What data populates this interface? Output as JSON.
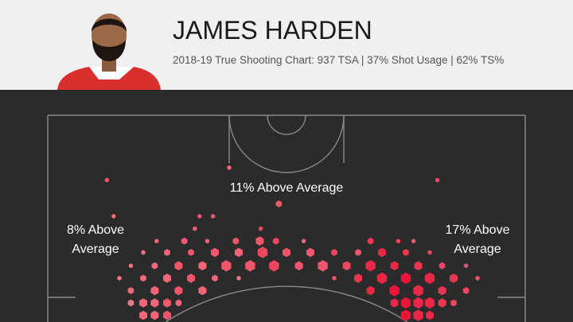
{
  "header": {
    "name": "JAMES HARDEN",
    "subtitle": "2018-19 True Shooting Chart: 937 TSA | 37% Shot Usage | 62% TS%"
  },
  "chart_data": {
    "type": "hexbin",
    "annotations": [
      {
        "lines": [
          "11% Above Average"
        ],
        "x": 0,
        "y": 7.6
      },
      {
        "lines": [
          "8% Above",
          "Average"
        ],
        "x": -20,
        "y": 13
      },
      {
        "lines": [
          "17% Above",
          "Average"
        ],
        "x": 20,
        "y": 13
      }
    ],
    "xlim": [
      -25,
      25
    ],
    "ylim": [
      0,
      21.7
    ],
    "color_low": "#f6b4b8",
    "color_high": "#e8173a",
    "x": [
      -6,
      -18.8,
      15.8,
      -0.8,
      -18.1,
      -9.1,
      -7.7,
      -9.6,
      -2.7,
      -13.6,
      -10.7,
      -8.3,
      -5.3,
      -2.8,
      -1.1,
      1.8,
      8.8,
      11.7,
      13.3,
      -15,
      -12.5,
      -10,
      -7.5,
      -5,
      -2.5,
      0,
      2.5,
      5,
      7.5,
      10,
      12.5,
      15,
      -16.3,
      -13.8,
      -11.3,
      -8.8,
      -6.3,
      -3.8,
      -1.3,
      1.3,
      3.8,
      6.3,
      8.8,
      11.3,
      13.8,
      16.3,
      18.8,
      -17.5,
      -15,
      -12.5,
      -10,
      -7.5,
      -5,
      5,
      7.5,
      10,
      12.5,
      15,
      17.5,
      20,
      -16.3,
      -13.8,
      -11.3,
      -8.8,
      8.8,
      11.3,
      13.8,
      16.3,
      18.8,
      -16.3,
      -15,
      -13.8,
      -12.5,
      -11.3,
      11.3,
      12.5,
      13.8,
      15,
      16.3,
      17.5,
      -15,
      -13.8,
      -12.5,
      12.5,
      13.8,
      15
    ],
    "y": [
      5.5,
      6.8,
      6.8,
      9.3,
      10.6,
      10.6,
      10.6,
      11.9,
      11.9,
      13.2,
      13.2,
      13.2,
      13.2,
      13.2,
      13.2,
      13.2,
      13.2,
      13.2,
      13.2,
      14.4,
      14.4,
      14.4,
      14.4,
      14.4,
      14.4,
      14.4,
      14.4,
      14.4,
      14.4,
      14.4,
      14.4,
      14.4,
      15.8,
      15.8,
      15.8,
      15.8,
      15.8,
      15.8,
      15.8,
      15.8,
      15.8,
      15.8,
      15.8,
      15.8,
      15.8,
      15.8,
      15.8,
      17.1,
      17.1,
      17.1,
      17.1,
      17.1,
      17.1,
      17.1,
      17.1,
      17.1,
      17.1,
      17.1,
      17.1,
      17.1,
      18.4,
      18.4,
      18.4,
      18.4,
      18.4,
      18.4,
      18.4,
      18.4,
      18.4,
      19.7,
      19.7,
      19.7,
      19.7,
      19.7,
      19.7,
      19.7,
      19.7,
      19.7,
      19.7,
      19.7,
      21,
      21,
      21,
      21,
      21,
      21
    ],
    "sizes": [
      1,
      1,
      1,
      2,
      1,
      1,
      1,
      1,
      1,
      1,
      2,
      1,
      2,
      3,
      2,
      1,
      2,
      1,
      1,
      1,
      2,
      2,
      3,
      3,
      4,
      3,
      3,
      2,
      2,
      3,
      2,
      1,
      1,
      2,
      3,
      3,
      4,
      4,
      4,
      3,
      4,
      3,
      4,
      3,
      3,
      2,
      1,
      1,
      2,
      3,
      3,
      2,
      1,
      1,
      3,
      4,
      4,
      4,
      3,
      1,
      2,
      3,
      3,
      3,
      3,
      4,
      4,
      3,
      2,
      2,
      3,
      3,
      3,
      2,
      3,
      4,
      4,
      4,
      3,
      2,
      3,
      3,
      3,
      4,
      4,
      3
    ],
    "values": [
      0.5,
      0.6,
      0.7,
      0.6,
      0.5,
      0.6,
      0.6,
      0.5,
      0.7,
      0.5,
      0.6,
      0.5,
      0.6,
      0.6,
      0.7,
      0.5,
      0.8,
      0.7,
      0.6,
      0.4,
      0.5,
      0.6,
      0.6,
      0.5,
      0.7,
      0.6,
      0.6,
      0.7,
      0.6,
      0.9,
      0.8,
      0.7,
      0.4,
      0.5,
      0.6,
      0.5,
      0.6,
      0.6,
      0.7,
      0.6,
      0.6,
      0.7,
      0.9,
      0.9,
      0.8,
      0.7,
      0.6,
      0.4,
      0.5,
      0.5,
      0.6,
      0.5,
      0.4,
      0.6,
      0.8,
      0.9,
      1,
      0.9,
      0.8,
      0.6,
      0.5,
      0.5,
      0.6,
      0.5,
      0.9,
      1,
      0.9,
      0.8,
      0.7,
      0.4,
      0.5,
      0.5,
      0.6,
      0.5,
      0.9,
      1,
      0.9,
      0.9,
      0.8,
      0.7,
      0.5,
      0.5,
      0.6,
      1,
      0.9,
      0.9
    ]
  }
}
